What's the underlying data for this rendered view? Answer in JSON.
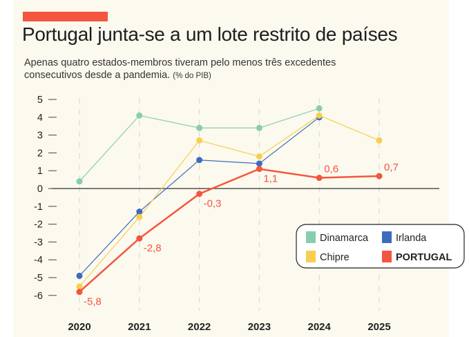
{
  "header": {
    "title": "Portugal junta-se a um lote restrito de países",
    "subtitle": "Apenas quatro estados-membros tiveram pelo menos três excedentes consecutivos desde a pandemia.",
    "unit": "(% do PIB)",
    "accent": "#f4553f"
  },
  "chart_data": {
    "type": "line",
    "x": [
      "2020",
      "2021",
      "2022",
      "2023",
      "2024",
      "2025"
    ],
    "ylim": [
      -6,
      5
    ],
    "yticks": [
      "5",
      "4",
      "3",
      "2",
      "1",
      "0",
      "-1",
      "-2",
      "-3",
      "-4",
      "-5",
      "-6"
    ],
    "grid": "vertical dashed",
    "legend": "right",
    "series": [
      {
        "name": "Dinamarca",
        "color": "#86cfae",
        "values": [
          0.4,
          4.1,
          3.4,
          3.4,
          4.5,
          null
        ]
      },
      {
        "name": "Irlanda",
        "color": "#3d6bbd",
        "values": [
          -4.9,
          -1.3,
          1.6,
          1.4,
          4.0,
          null
        ]
      },
      {
        "name": "Chipre",
        "color": "#f5d050",
        "values": [
          -5.5,
          -1.6,
          2.7,
          1.8,
          4.1,
          2.7
        ]
      },
      {
        "name": "PORTUGAL",
        "color": "#f4553f",
        "values": [
          -5.8,
          -2.8,
          -0.3,
          1.1,
          0.6,
          0.7
        ],
        "labels": [
          "-5,8",
          "-2,8",
          "-0,3",
          "1,1",
          "0,6",
          "0,7"
        ]
      }
    ]
  }
}
